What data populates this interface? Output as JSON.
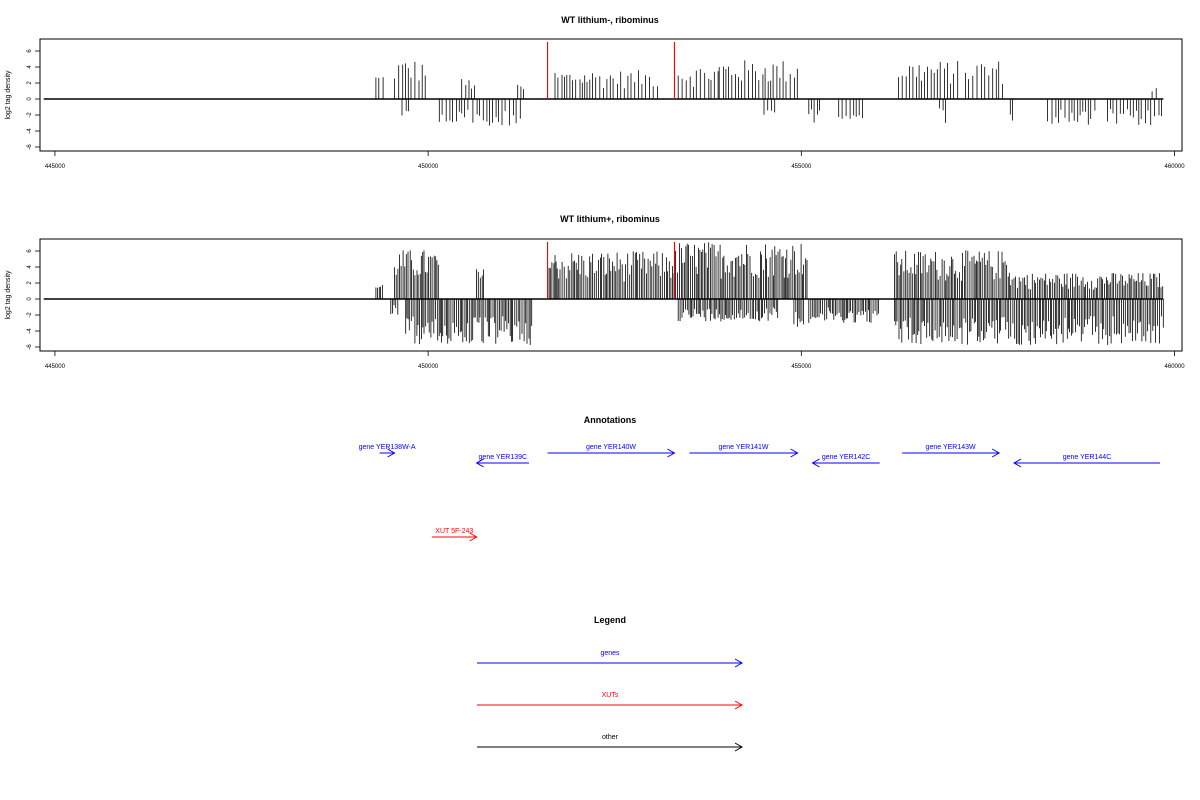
{
  "colors": {
    "gene": "#0000ff",
    "xut": "#ff0000",
    "other": "#000000",
    "marker": "#ff0000",
    "signal": "#000000"
  },
  "chart_data": [
    {
      "type": "bar",
      "title": "WT lithium-, ribominus",
      "ylabel": "log2 tag density",
      "xlim": [
        444800,
        460100
      ],
      "ylim": [
        -6.5,
        7.5
      ],
      "x_ticks": [
        "445000",
        "450000",
        "455000",
        "460000"
      ],
      "y_ticks": [
        "-6",
        "-4",
        "-2",
        "0",
        "2",
        "4",
        "6"
      ],
      "baseline_range": [
        444850,
        459850
      ],
      "markers": [
        451600,
        453300
      ],
      "positive_segments": [
        {
          "from": 449300,
          "to": 449400,
          "max": 3.3
        },
        {
          "from": 449550,
          "to": 450000,
          "max": 5.0
        },
        {
          "from": 450450,
          "to": 450650,
          "max": 2.6
        },
        {
          "from": 451200,
          "to": 451300,
          "max": 1.8
        },
        {
          "from": 451700,
          "to": 453100,
          "max": 3.6
        },
        {
          "from": 453350,
          "to": 453900,
          "max": 4.2
        },
        {
          "from": 453900,
          "to": 454950,
          "max": 4.9
        },
        {
          "from": 456300,
          "to": 457100,
          "max": 4.8
        },
        {
          "from": 457200,
          "to": 457700,
          "max": 4.9
        },
        {
          "from": 459700,
          "to": 459800,
          "max": 1.6
        }
      ],
      "negative_segments": [
        {
          "from": 449650,
          "to": 449750,
          "min": -2.8
        },
        {
          "from": 450150,
          "to": 450550,
          "min": -3.2
        },
        {
          "from": 450600,
          "to": 451250,
          "min": -3.7
        },
        {
          "from": 454500,
          "to": 454650,
          "min": -2.0
        },
        {
          "from": 455100,
          "to": 455300,
          "min": -3.2
        },
        {
          "from": 455500,
          "to": 455850,
          "min": -2.5
        },
        {
          "from": 456850,
          "to": 456950,
          "min": -3.0
        },
        {
          "from": 457800,
          "to": 457850,
          "min": -2.8
        },
        {
          "from": 458300,
          "to": 458950,
          "min": -3.5
        },
        {
          "from": 459100,
          "to": 459850,
          "min": -3.4
        }
      ]
    },
    {
      "type": "bar",
      "title": "WT lithium+, ribominus",
      "ylabel": "log2 tag density",
      "xlim": [
        444800,
        460100
      ],
      "ylim": [
        -6.5,
        7.5
      ],
      "x_ticks": [
        "445000",
        "450000",
        "455000",
        "460000"
      ],
      "y_ticks": [
        "-6",
        "-4",
        "-2",
        "0",
        "2",
        "4",
        "6"
      ],
      "baseline_range": [
        444850,
        459850
      ],
      "markers": [
        451600,
        453300
      ],
      "positive_segments": [
        {
          "from": 449300,
          "to": 449400,
          "max": 2.0
        },
        {
          "from": 449550,
          "to": 450150,
          "max": 6.2
        },
        {
          "from": 450650,
          "to": 450750,
          "max": 3.8
        },
        {
          "from": 451600,
          "to": 453300,
          "max": 6.0
        },
        {
          "from": 453300,
          "to": 455100,
          "max": 7.2
        },
        {
          "from": 456250,
          "to": 457800,
          "max": 6.1
        },
        {
          "from": 457800,
          "to": 459850,
          "max": 3.3
        }
      ],
      "negative_segments": [
        {
          "from": 449500,
          "to": 449600,
          "min": -2.0
        },
        {
          "from": 449700,
          "to": 451400,
          "min": -5.8
        },
        {
          "from": 453350,
          "to": 454700,
          "min": -2.8
        },
        {
          "from": 454900,
          "to": 455050,
          "min": -3.5
        },
        {
          "from": 455100,
          "to": 456050,
          "min": -3.0
        },
        {
          "from": 456250,
          "to": 459850,
          "min": -5.8
        }
      ]
    }
  ],
  "annotations": {
    "title": "Annotations",
    "features": [
      {
        "label": "gene YER138W-A",
        "kind": "gene",
        "start": 449350,
        "end": 449550,
        "dir": "+",
        "row": 0
      },
      {
        "label": "gene YER139C",
        "kind": "gene",
        "start": 450650,
        "end": 451350,
        "dir": "-",
        "row": 1
      },
      {
        "label": "gene YER140W",
        "kind": "gene",
        "start": 451600,
        "end": 453300,
        "dir": "+",
        "row": 0
      },
      {
        "label": "gene YER141W",
        "kind": "gene",
        "start": 453500,
        "end": 454950,
        "dir": "+",
        "row": 0
      },
      {
        "label": "gene YER142C",
        "kind": "gene",
        "start": 455150,
        "end": 456050,
        "dir": "-",
        "row": 1
      },
      {
        "label": "gene YER143W",
        "kind": "gene",
        "start": 456350,
        "end": 457650,
        "dir": "+",
        "row": 0
      },
      {
        "label": "gene YER144C",
        "kind": "gene",
        "start": 457850,
        "end": 460100,
        "dir": "-",
        "row": 1
      },
      {
        "label": "XUT 5F-243",
        "kind": "xut",
        "start": 450050,
        "end": 450650,
        "dir": "+",
        "row": 2
      }
    ]
  },
  "legend": {
    "title": "Legend",
    "items": [
      {
        "label": "genes",
        "kind": "gene"
      },
      {
        "label": "XUTs",
        "kind": "xut"
      },
      {
        "label": "other",
        "kind": "other"
      }
    ]
  }
}
